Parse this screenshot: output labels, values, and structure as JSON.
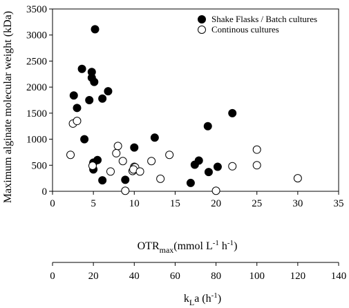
{
  "chart_data": {
    "type": "scatter",
    "ylabel": "Maximum alginate molecular weight (kDa)",
    "xlabel_top": {
      "main": "OTR",
      "sub": "max",
      "rest": "(mmol L",
      "sup1": "-1",
      "mid": " h",
      "sup2": "-1",
      "end": ")"
    },
    "xlabel_bottom": {
      "main": "k",
      "sub": "L",
      "rest": "a (h",
      "sup": "-1",
      "end": ")"
    },
    "xlim": [
      0,
      35
    ],
    "ylim": [
      0,
      3500
    ],
    "x2lim": [
      0,
      140
    ],
    "xticks": [
      0,
      5,
      10,
      15,
      20,
      25,
      30,
      35
    ],
    "yticks": [
      0,
      500,
      1000,
      1500,
      2000,
      2500,
      3000,
      3500
    ],
    "x2ticks": [
      0,
      20,
      40,
      60,
      80,
      100,
      120,
      140
    ],
    "grid": false,
    "legend_position": "top-right",
    "series": [
      {
        "name": "Shake Flasks / Batch cultures",
        "marker": "filled-circle",
        "color": "#000000",
        "points": [
          [
            5.2,
            3110
          ],
          [
            3.6,
            2350
          ],
          [
            4.8,
            2290
          ],
          [
            4.8,
            2180
          ],
          [
            5.1,
            2100
          ],
          [
            6.8,
            1920
          ],
          [
            2.6,
            1840
          ],
          [
            6.1,
            1780
          ],
          [
            4.5,
            1750
          ],
          [
            3.0,
            1600
          ],
          [
            3.9,
            1000
          ],
          [
            5.0,
            550
          ],
          [
            5.0,
            420
          ],
          [
            5.5,
            600
          ],
          [
            6.1,
            210
          ],
          [
            8.9,
            220
          ],
          [
            10.0,
            840
          ],
          [
            12.5,
            1030
          ],
          [
            19.0,
            1250
          ],
          [
            22.0,
            1500
          ],
          [
            17.4,
            510
          ],
          [
            17.9,
            590
          ],
          [
            19.1,
            370
          ],
          [
            20.2,
            470
          ],
          [
            16.9,
            160
          ]
        ]
      },
      {
        "name": "Continous cultures",
        "marker": "open-circle",
        "color": "#000000",
        "points": [
          [
            2.5,
            1300
          ],
          [
            3.0,
            1350
          ],
          [
            2.2,
            700
          ],
          [
            4.9,
            490
          ],
          [
            7.1,
            380
          ],
          [
            8.0,
            870
          ],
          [
            7.8,
            730
          ],
          [
            8.6,
            580
          ],
          [
            9.8,
            390
          ],
          [
            10.0,
            470
          ],
          [
            10.1,
            460
          ],
          [
            9.9,
            420
          ],
          [
            10.7,
            380
          ],
          [
            8.9,
            10
          ],
          [
            12.1,
            580
          ],
          [
            13.2,
            240
          ],
          [
            14.3,
            700
          ],
          [
            20.0,
            10
          ],
          [
            22.0,
            480
          ],
          [
            25.0,
            800
          ],
          [
            25.0,
            500
          ],
          [
            30.0,
            250
          ]
        ]
      }
    ]
  }
}
